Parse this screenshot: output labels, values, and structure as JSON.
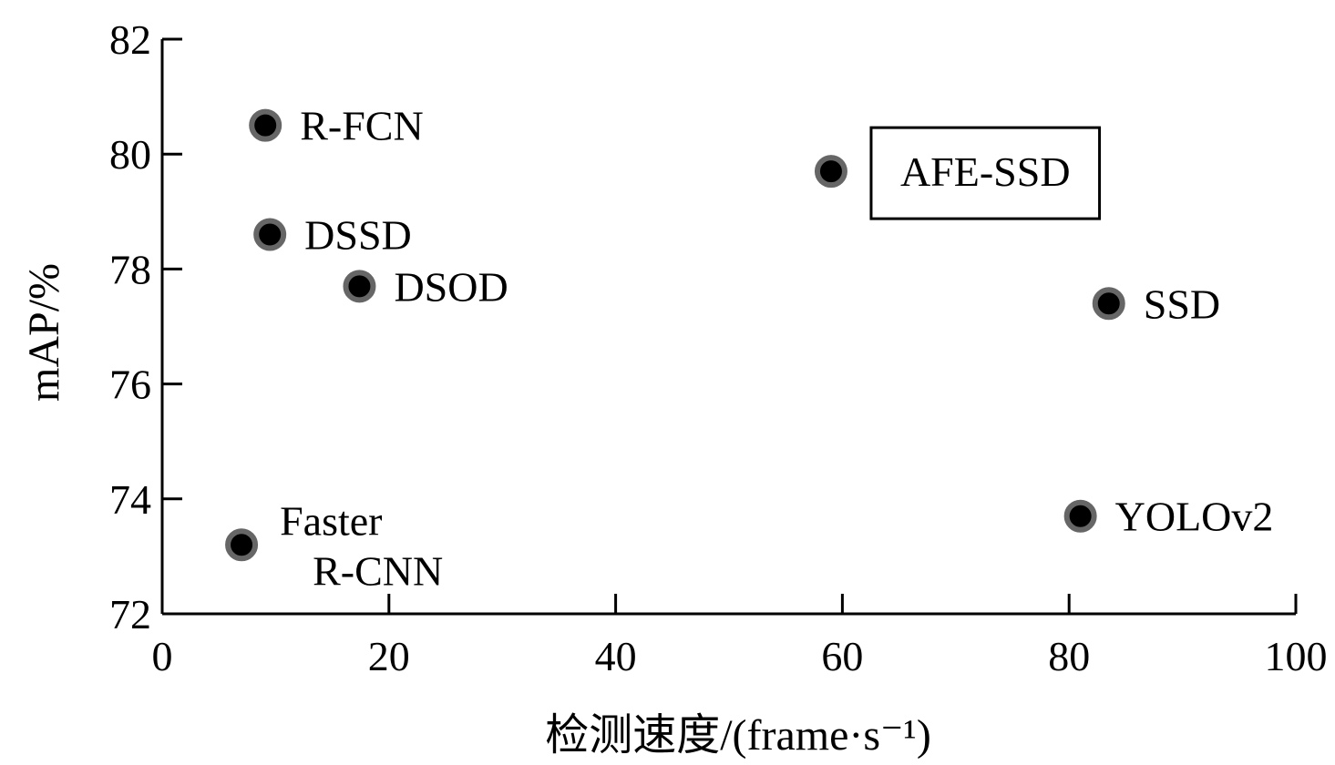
{
  "chart_data": {
    "type": "scatter",
    "title": "",
    "xlabel": "检测速度/(frame·s⁻¹)",
    "ylabel": "mAP/%",
    "xlim": [
      0,
      100
    ],
    "ylim": [
      72,
      82
    ],
    "xticks": [
      0,
      20,
      40,
      60,
      80,
      100
    ],
    "yticks": [
      72,
      74,
      76,
      78,
      80,
      82
    ],
    "grid": false,
    "points": [
      {
        "label": "R-FCN",
        "x": 9.1,
        "y": 80.5
      },
      {
        "label": "DSSD",
        "x": 9.5,
        "y": 78.6
      },
      {
        "label": "DSOD",
        "x": 17.4,
        "y": 77.7
      },
      {
        "label": "Faster R-CNN",
        "x": 7.0,
        "y": 73.2
      },
      {
        "label": "AFE-SSD",
        "x": 59.0,
        "y": 79.7,
        "highlighted": true
      },
      {
        "label": "SSD",
        "x": 83.5,
        "y": 77.4
      },
      {
        "label": "YOLOv2",
        "x": 81.0,
        "y": 73.7
      }
    ],
    "colors": {
      "marker_fill": "#000000",
      "marker_ring": "#666666"
    }
  }
}
